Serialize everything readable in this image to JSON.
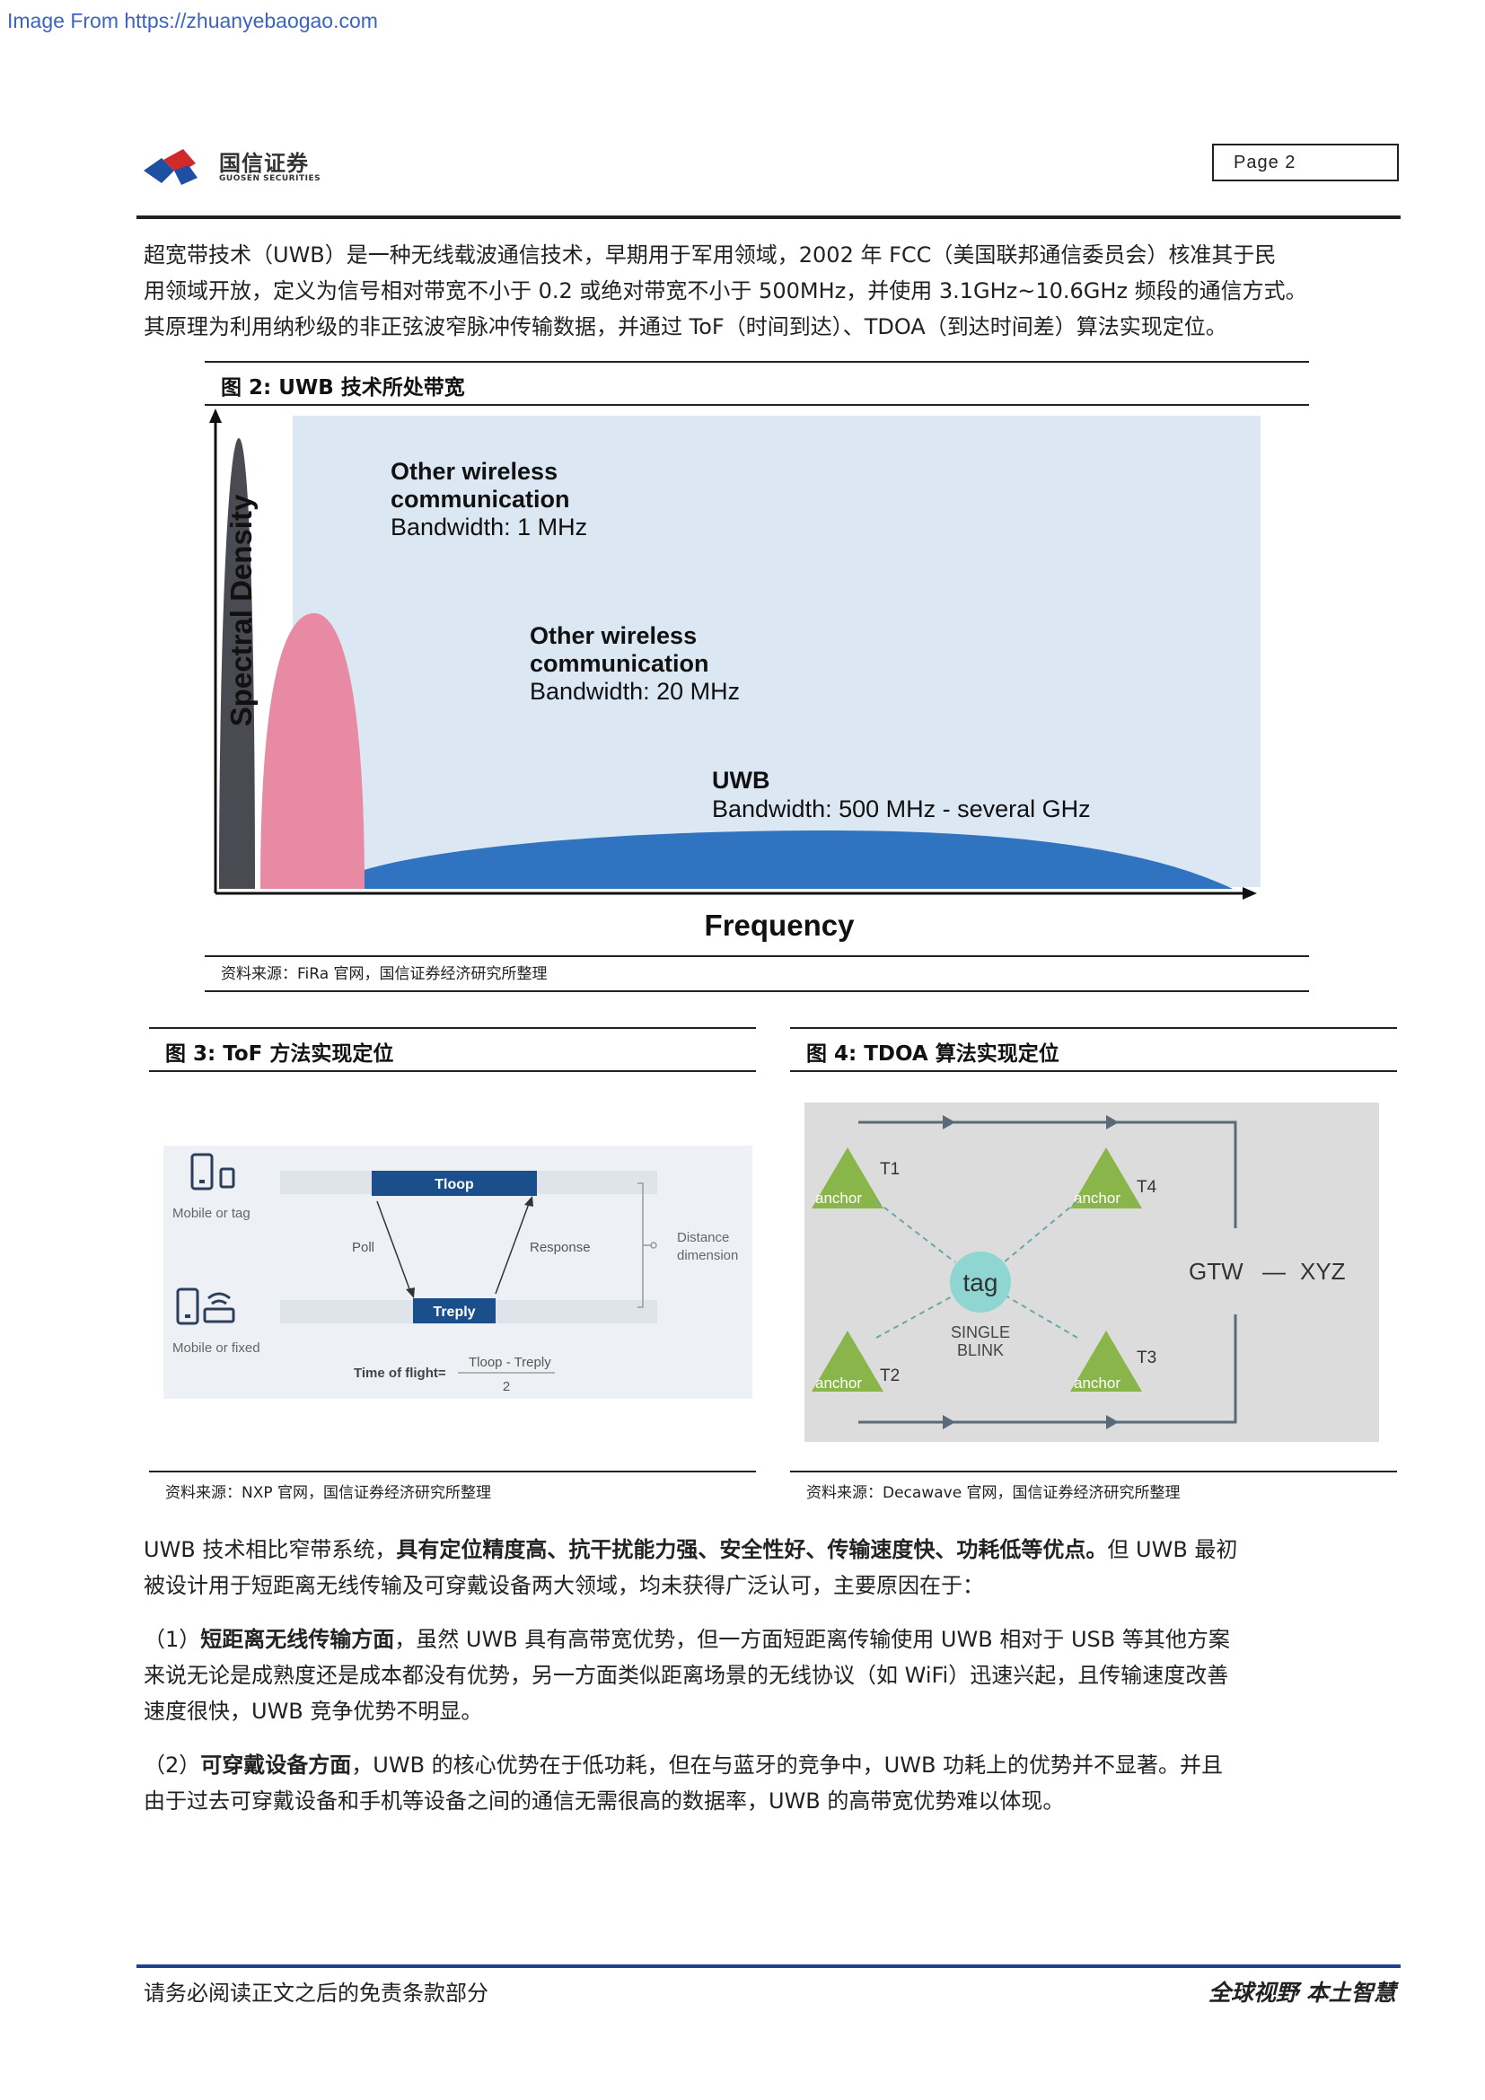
{
  "watermark": "Image From https://zhuanyebaogao.com",
  "header": {
    "company_cn": "国信证券",
    "company_en": "GUOSEN SECURITIES",
    "page_label": "Page  2"
  },
  "intro": {
    "line1": "超宽带技术（UWB）是一种无线载波通信技术，早期用于军用领域，2002 年 FCC（美国联邦通信委员会）核准其于民",
    "line2": "用领域开放，定义为信号相对带宽不小于 0.2 或绝对带宽不小于 500MHz，并使用 3.1GHz~10.6GHz 频段的通信方式。",
    "line3": "其原理为利用纳秒级的非正弦波窄脉冲传输数据，并通过 ToF（时间到达）、TDOA（到达时间差）算法实现定位。"
  },
  "fig2": {
    "title": "图  2:  UWB 技术所处带宽",
    "source": "资料来源：FiRa 官网，国信证券经济研究所整理",
    "chart_data": {
      "type": "area",
      "xlabel": "Frequency",
      "ylabel": "Spectral Density",
      "annotations": [
        {
          "lines": [
            "Other wireless",
            "communication",
            "Bandwidth: 1 MHz"
          ]
        },
        {
          "lines": [
            "Other wireless",
            "communication",
            "Bandwidth: 20 MHz"
          ]
        },
        {
          "lines": [
            "UWB",
            "Bandwidth: 500 MHz - several GHz"
          ]
        }
      ],
      "series": [
        {
          "name": "Bandwidth: 1 MHz",
          "color": "#4a4b52"
        },
        {
          "name": "Bandwidth: 20 MHz",
          "color": "#e98aa4"
        },
        {
          "name": "Bandwidth: 500 MHz - several GHz",
          "color": "#2f73c1"
        }
      ]
    }
  },
  "fig3": {
    "title": "图  3:  ToF 方法实现定位",
    "source": "资料来源：NXP 官网，国信证券经济研究所整理",
    "labels": {
      "mobile_tag": "Mobile or tag",
      "mobile_fixed": "Mobile or fixed",
      "tloop": "Tloop",
      "treply": "Treply",
      "poll": "Poll",
      "response": "Response",
      "distance": "Distance",
      "dimension": "dimension",
      "tof": "Time of flight=",
      "numerator": "Tloop - Treply",
      "denominator": "2"
    }
  },
  "fig4": {
    "title": "图  4:  TDOA 算法实现定位",
    "source": "资料来源：Decawave 官网，国信证券经济研究所整理",
    "labels": {
      "anchor": "anchor",
      "t1": "T1",
      "t2": "T2",
      "t3": "T3",
      "t4": "T4",
      "tag": "tag",
      "single": "SINGLE",
      "blink": "BLINK",
      "gtw": "GTW",
      "dash": "—",
      "xyz": "XYZ"
    }
  },
  "summary": {
    "p1_a": "UWB 技术相比窄带系统，",
    "p1_b": "具有定位精度高、抗干扰能力强、安全性好、传输速度快、功耗低等优点。",
    "p1_c": "但 UWB 最初",
    "p1_line2": "被设计用于短距离无线传输及可穿戴设备两大领域，均未获得广泛认可，主要原因在于：",
    "p2_a": "（1）",
    "p2_b": "短距离无线传输方面",
    "p2_c": "，虽然 UWB 具有高带宽优势，但一方面短距离传输使用 UWB 相对于 USB 等其他方案",
    "p2_line2": "来说无论是成熟度还是成本都没有优势，另一方面类似距离场景的无线协议（如 WiFi）迅速兴起，且传输速度改善",
    "p2_line3": "速度很快，UWB 竞争优势不明显。",
    "p3_a": "（2）",
    "p3_b": "可穿戴设备方面",
    "p3_c": "，UWB 的核心优势在于低功耗，但在与蓝牙的竞争中，UWB 功耗上的优势并不显著。并且",
    "p3_line2": "由于过去可穿戴设备和手机等设备之间的通信无需很高的数据率，UWB 的高带宽优势难以体现。"
  },
  "footer": {
    "left": "请务必阅读正文之后的免责条款部分",
    "right": "全球视野  本土智慧"
  }
}
